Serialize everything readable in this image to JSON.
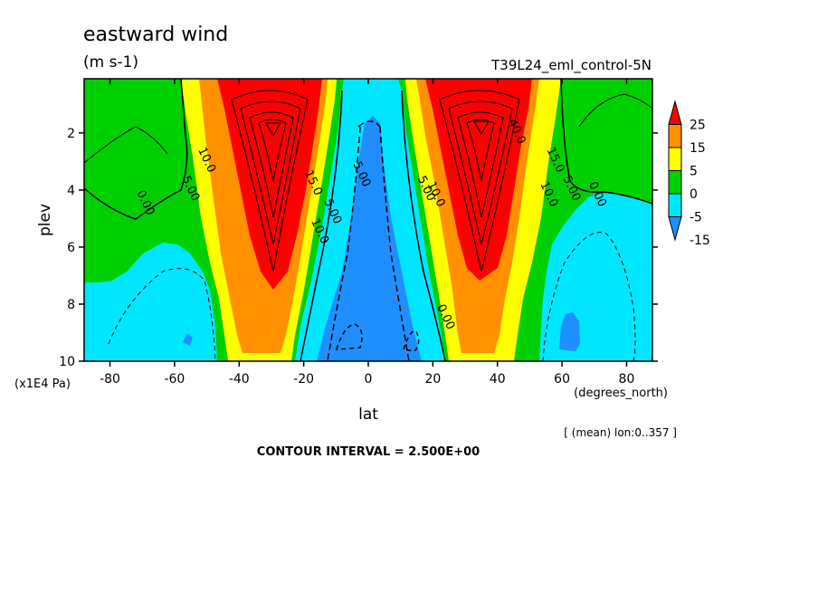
{
  "chart_data": {
    "type": "heatmap",
    "title": "eastward wind",
    "units": "(m s-1)",
    "run_label": "T39L24_eml_control-5N",
    "xlabel": "lat",
    "x_units": "(degrees_north)",
    "ylabel": "plev",
    "y_units": "(x1E4 Pa)",
    "x_ticks": [
      "-80",
      "-60",
      "-40",
      "-20",
      "0",
      "20",
      "40",
      "60",
      "80"
    ],
    "x_tick_values": [
      -80,
      -60,
      -40,
      -20,
      0,
      20,
      40,
      60,
      80
    ],
    "y_ticks": [
      "2",
      "4",
      "6",
      "8",
      "10"
    ],
    "y_tick_values": [
      2,
      4,
      6,
      8,
      10
    ],
    "xlim": [
      -88,
      88
    ],
    "ylim": [
      10,
      0.1
    ],
    "contour_interval_text": "CONTOUR INTERVAL = 2.500E+00",
    "contour_interval": 2.5,
    "averaging_note": "[ (mean) lon:0..357 ]",
    "colorbar": {
      "levels": [
        -15,
        -5,
        0,
        5,
        15,
        25
      ],
      "labels": [
        "25",
        "15",
        "5",
        "0",
        "-5",
        "-15"
      ],
      "colors": [
        "#1f8fff",
        "#00e6ff",
        "#00d000",
        "#ffff00",
        "#ff9000",
        "#ff0000"
      ]
    },
    "contour_labels": [
      {
        "text": "0.00",
        "lat": -70,
        "p": 4.5
      },
      {
        "text": "5.00",
        "lat": -56,
        "p": 4.0
      },
      {
        "text": "10.0",
        "lat": -51,
        "p": 3.0
      },
      {
        "text": "15.0",
        "lat": -18,
        "p": 3.8
      },
      {
        "text": "10.0",
        "lat": -16,
        "p": 5.5
      },
      {
        "text": "5.00",
        "lat": -12,
        "p": 4.8
      },
      {
        "text": "5.00",
        "lat": -3,
        "p": 3.5
      },
      {
        "text": "5.00",
        "lat": 17,
        "p": 4.0
      },
      {
        "text": "10.0",
        "lat": 20,
        "p": 4.2
      },
      {
        "text": "0.00",
        "lat": 23,
        "p": 8.5
      },
      {
        "text": "10.0",
        "lat": 55,
        "p": 4.2
      },
      {
        "text": "15.0",
        "lat": 57,
        "p": 3.0
      },
      {
        "text": "5.00",
        "lat": 62,
        "p": 4.0
      },
      {
        "text": "0.00",
        "lat": 70,
        "p": 4.2
      },
      {
        "text": "40.0",
        "lat": 45,
        "p": 2.0
      }
    ]
  }
}
